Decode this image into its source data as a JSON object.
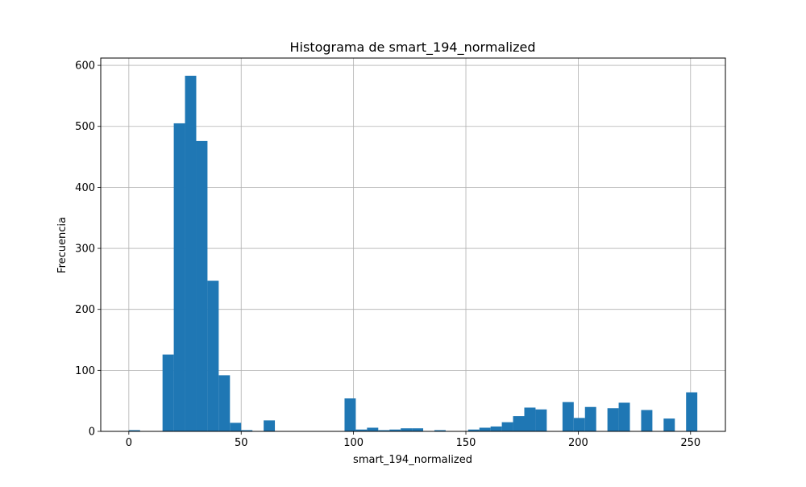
{
  "chart_data": {
    "type": "bar",
    "title": "Histograma de smart_194_normalized",
    "xlabel": "smart_194_normalized",
    "ylabel": "Frecuencia",
    "xlim": [
      -12.5,
      265.5
    ],
    "ylim": [
      0,
      612
    ],
    "xticks": [
      0,
      50,
      100,
      150,
      200,
      250
    ],
    "yticks": [
      0,
      100,
      200,
      300,
      400,
      500,
      600
    ],
    "grid": true,
    "bar_color": "#1f77b4",
    "bin_width": 5,
    "bins": [
      {
        "x0": 0,
        "x1": 5,
        "count": 2
      },
      {
        "x0": 15,
        "x1": 20,
        "count": 126
      },
      {
        "x0": 20,
        "x1": 25,
        "count": 505
      },
      {
        "x0": 25,
        "x1": 30,
        "count": 583
      },
      {
        "x0": 30,
        "x1": 35,
        "count": 476
      },
      {
        "x0": 35,
        "x1": 40,
        "count": 247
      },
      {
        "x0": 40,
        "x1": 45,
        "count": 92
      },
      {
        "x0": 45,
        "x1": 50,
        "count": 14
      },
      {
        "x0": 50,
        "x1": 55,
        "count": 2
      },
      {
        "x0": 60,
        "x1": 65,
        "count": 18
      },
      {
        "x0": 96,
        "x1": 101,
        "count": 54
      },
      {
        "x0": 101,
        "x1": 106,
        "count": 3
      },
      {
        "x0": 106,
        "x1": 111,
        "count": 6
      },
      {
        "x0": 111,
        "x1": 116,
        "count": 2
      },
      {
        "x0": 116,
        "x1": 121,
        "count": 3
      },
      {
        "x0": 121,
        "x1": 126,
        "count": 5
      },
      {
        "x0": 126,
        "x1": 131,
        "count": 5
      },
      {
        "x0": 136,
        "x1": 141,
        "count": 2
      },
      {
        "x0": 151,
        "x1": 156,
        "count": 3
      },
      {
        "x0": 156,
        "x1": 161,
        "count": 6
      },
      {
        "x0": 161,
        "x1": 166,
        "count": 8
      },
      {
        "x0": 166,
        "x1": 171,
        "count": 15
      },
      {
        "x0": 171,
        "x1": 176,
        "count": 25
      },
      {
        "x0": 176,
        "x1": 181,
        "count": 39
      },
      {
        "x0": 181,
        "x1": 186,
        "count": 36
      },
      {
        "x0": 193,
        "x1": 198,
        "count": 48
      },
      {
        "x0": 198,
        "x1": 203,
        "count": 22
      },
      {
        "x0": 203,
        "x1": 208,
        "count": 40
      },
      {
        "x0": 213,
        "x1": 218,
        "count": 38
      },
      {
        "x0": 218,
        "x1": 223,
        "count": 47
      },
      {
        "x0": 228,
        "x1": 233,
        "count": 35
      },
      {
        "x0": 238,
        "x1": 243,
        "count": 21
      },
      {
        "x0": 248,
        "x1": 253,
        "count": 64
      }
    ]
  }
}
